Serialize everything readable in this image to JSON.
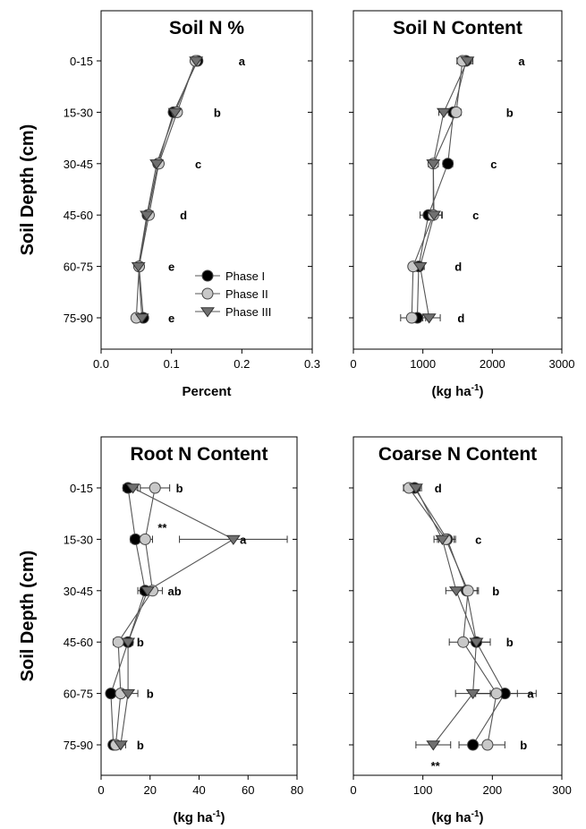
{
  "colors": {
    "phase1": "#000000",
    "phase2": "#c8c8c8",
    "phase3": "#707070",
    "line": "#555555",
    "axis": "#000000"
  },
  "y_axis_title": "Soil Depth (cm)",
  "legend": {
    "location": "lower-right of Soil N % panel",
    "entries": [
      {
        "label": "Phase I",
        "marker": "circle",
        "color": "#000000"
      },
      {
        "label": "Phase II",
        "marker": "circle",
        "color": "#c8c8c8"
      },
      {
        "label": "Phase III",
        "marker": "triangle-down",
        "color": "#707070"
      }
    ]
  },
  "chart_data": [
    {
      "type": "line",
      "title": "Soil N %",
      "xlabel": "Percent",
      "xlabel_sup": "",
      "ylabel": "Soil Depth (cm)",
      "xlim": [
        0,
        0.3
      ],
      "xticks": [
        "0.0",
        "0.1",
        "0.2",
        "0.3"
      ],
      "categories": [
        "0-15",
        "15-30",
        "30-45",
        "45-60",
        "60-75",
        "75-90"
      ],
      "series": [
        {
          "name": "Phase I",
          "values": [
            0.137,
            0.103,
            0.081,
            0.066,
            0.054,
            0.06
          ],
          "err": [
            0.005,
            0.004,
            0.003,
            0.003,
            0.002,
            0.003
          ]
        },
        {
          "name": "Phase II",
          "values": [
            0.134,
            0.108,
            0.082,
            0.068,
            0.054,
            0.05
          ],
          "err": [
            0.005,
            0.004,
            0.003,
            0.003,
            0.002,
            0.003
          ]
        },
        {
          "name": "Phase III",
          "values": [
            0.135,
            0.105,
            0.079,
            0.065,
            0.053,
            0.058
          ],
          "err": [
            0.005,
            0.004,
            0.003,
            0.003,
            0.002,
            0.003
          ]
        }
      ],
      "letters": [
        "a",
        "b",
        "c",
        "d",
        "e",
        "e"
      ],
      "letter_x": [
        0.2,
        0.165,
        0.138,
        0.117,
        0.1,
        0.1
      ],
      "stars": [],
      "legend": true
    },
    {
      "type": "line",
      "title": "Soil N Content",
      "xlabel": "(kg ha",
      "xlabel_sup": "-1",
      "ylabel": "",
      "xlim": [
        0,
        3000
      ],
      "xticks": [
        "0",
        "1000",
        "2000",
        "3000"
      ],
      "categories": [
        "0-15",
        "15-30",
        "30-45",
        "45-60",
        "60-75",
        "75-90"
      ],
      "series": [
        {
          "name": "Phase I",
          "values": [
            1620,
            1440,
            1360,
            1080,
            940,
            920
          ],
          "err": [
            80,
            70,
            70,
            120,
            60,
            120
          ]
        },
        {
          "name": "Phase II",
          "values": [
            1570,
            1480,
            1150,
            1150,
            860,
            840
          ],
          "err": [
            80,
            70,
            70,
            120,
            60,
            160
          ]
        },
        {
          "name": "Phase III",
          "values": [
            1640,
            1300,
            1150,
            1160,
            960,
            1090
          ],
          "err": [
            80,
            70,
            70,
            120,
            60,
            160
          ]
        }
      ],
      "letters": [
        "a",
        "b",
        "c",
        "c",
        "d",
        "d"
      ],
      "letter_x": [
        2420,
        2250,
        2020,
        1760,
        1510,
        1550
      ],
      "stars": [],
      "legend": false
    },
    {
      "type": "line",
      "title": "Root N Content",
      "xlabel": "(kg ha",
      "xlabel_sup": "-1",
      "ylabel": "Soil Depth (cm)",
      "xlim": [
        0,
        80
      ],
      "xticks": [
        "0",
        "20",
        "40",
        "60",
        "80"
      ],
      "categories": [
        "0-15",
        "15-30",
        "30-45",
        "45-60",
        "60-75",
        "75-90"
      ],
      "series": [
        {
          "name": "Phase I",
          "values": [
            11,
            14,
            18,
            11,
            4,
            5
          ],
          "err": [
            2,
            2,
            3,
            2,
            1,
            1
          ]
        },
        {
          "name": "Phase II",
          "values": [
            22,
            18,
            21,
            7,
            8,
            6
          ],
          "err": [
            6,
            3,
            4,
            2,
            3,
            2
          ]
        },
        {
          "name": "Phase III",
          "values": [
            13,
            54,
            19,
            11,
            11,
            8
          ],
          "err": [
            2,
            22,
            3,
            2,
            4,
            2
          ]
        }
      ],
      "letters": [
        "b",
        "a",
        "ab",
        "b",
        "b",
        "b"
      ],
      "letter_x": [
        32,
        58,
        30,
        16,
        20,
        16
      ],
      "stars": [
        {
          "text": "**",
          "category": "15-30",
          "x": 25,
          "offset": -0.25
        }
      ],
      "legend": false
    },
    {
      "type": "line",
      "title": "Coarse N Content",
      "xlabel": "(kg ha",
      "xlabel_sup": "-1",
      "ylabel": "",
      "xlim": [
        0,
        300
      ],
      "xticks": [
        "0",
        "100",
        "200",
        "300"
      ],
      "categories": [
        "0-15",
        "15-30",
        "30-45",
        "45-60",
        "60-75",
        "75-90"
      ],
      "series": [
        {
          "name": "Phase I",
          "values": [
            88,
            135,
            163,
            177,
            218,
            172
          ],
          "err": [
            8,
            12,
            15,
            20,
            45,
            20
          ]
        },
        {
          "name": "Phase II",
          "values": [
            80,
            133,
            165,
            158,
            206,
            193
          ],
          "err": [
            8,
            12,
            15,
            20,
            30,
            25
          ]
        },
        {
          "name": "Phase III",
          "values": [
            90,
            128,
            148,
            177,
            172,
            115
          ],
          "err": [
            8,
            12,
            15,
            20,
            25,
            25
          ]
        }
      ],
      "letters": [
        "d",
        "c",
        "b",
        "b",
        "a",
        "b"
      ],
      "letter_x": [
        122,
        180,
        205,
        225,
        255,
        245
      ],
      "stars": [
        {
          "text": "**",
          "category": "75-90",
          "x": 118,
          "offset": 0.38
        }
      ],
      "legend": false
    }
  ]
}
